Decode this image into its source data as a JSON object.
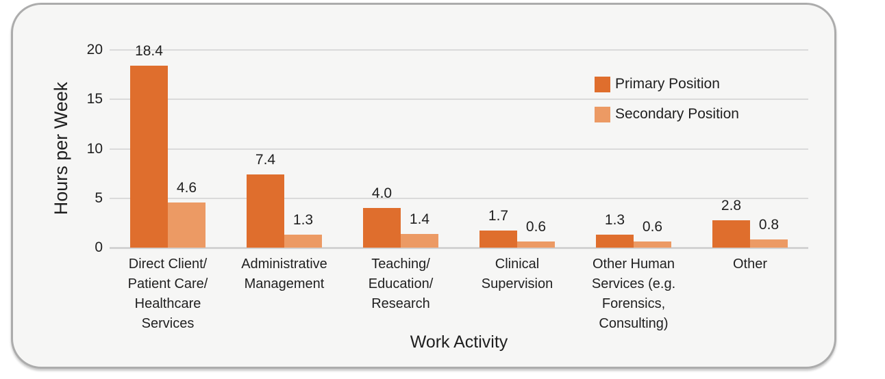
{
  "card": {
    "background": "#f6f6f5",
    "border_color": "#acacac"
  },
  "chart_data": {
    "type": "bar",
    "title": "",
    "xlabel": "Work Activity",
    "ylabel": "Hours per Week",
    "ylim": [
      0,
      20
    ],
    "y_ticks": [
      0,
      5,
      10,
      15,
      20
    ],
    "grid": true,
    "gridline_color": "#dadada",
    "plot_background": "#f6f6f5",
    "legend_position": "inside-upper-right",
    "value_label_decimals": 1,
    "categories": [
      "Direct Client/\nPatient Care/\nHealthcare\nServices",
      "Administrative\nManagement",
      "Teaching/\nEducation/\nResearch",
      "Clinical\nSupervision",
      "Other Human\nServices (e.g.\nForensics,\nConsulting)",
      "Other"
    ],
    "series": [
      {
        "name": "Primary Position",
        "color": "#df6e2d",
        "values": [
          18.4,
          7.4,
          4.0,
          1.7,
          1.3,
          2.8
        ]
      },
      {
        "name": "Secondary Position",
        "color": "#ec9a64",
        "values": [
          4.6,
          1.3,
          1.4,
          0.6,
          0.6,
          0.8
        ]
      }
    ]
  }
}
